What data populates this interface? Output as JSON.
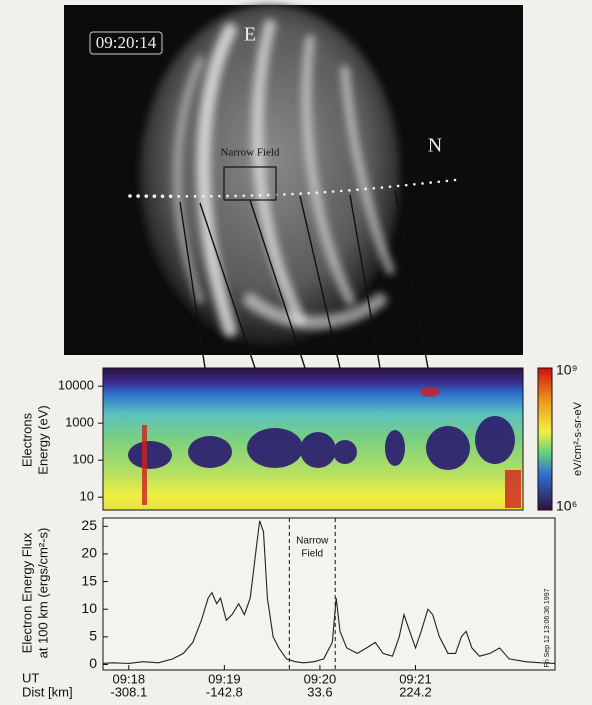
{
  "image": {
    "timestamp": "09:20:14",
    "labels": [
      "E",
      "N"
    ],
    "box_label": "Narrow Field"
  },
  "chart_data": [
    {
      "type": "spectrogram",
      "ylabel": [
        "Electrons",
        "Energy (eV)"
      ],
      "ylim": [
        4.5,
        31000
      ],
      "log_scale": true,
      "yticks": [
        10,
        100,
        1000,
        10000
      ],
      "colorbar": {
        "label": "eV/cm²-s-sr-eV",
        "ticks": [
          {
            "value": 1000000000,
            "label": "10⁹"
          },
          {
            "value": 1000000,
            "label": "10⁶"
          }
        ]
      }
    },
    {
      "type": "line",
      "ylabel": [
        "Electron Energy Flux",
        "at 100 km (ergs/cm²-s)"
      ],
      "color": "#222222",
      "x": [
        -0.27,
        -0.17,
        0,
        0.15,
        0.31,
        0.46,
        0.57,
        0.67,
        0.76,
        0.83,
        0.87,
        0.92,
        0.96,
        1.02,
        1.08,
        1.15,
        1.21,
        1.27,
        1.34,
        1.37,
        1.41,
        1.45,
        1.51,
        1.57,
        1.65,
        1.74,
        1.83,
        1.94,
        2.04,
        2.13,
        2.17,
        2.21,
        2.28,
        2.39,
        2.49,
        2.58,
        2.66,
        2.76,
        2.83,
        2.88,
        2.94,
        3.0,
        3.06,
        3.13,
        3.18,
        3.25,
        3.34,
        3.42,
        3.48,
        3.53,
        3.59,
        3.67,
        3.78,
        3.88,
        3.98,
        4.15,
        4.31,
        4.46
      ],
      "values": [
        0.2,
        0.3,
        0.2,
        0.5,
        0.3,
        1,
        2,
        4,
        8,
        12,
        13,
        11,
        12,
        8,
        9,
        11,
        9,
        12,
        22,
        26,
        24,
        12,
        5,
        3,
        1,
        0.5,
        0.3,
        0.5,
        1,
        4,
        12,
        6,
        3,
        2,
        3,
        4,
        2,
        1.5,
        5,
        9,
        6,
        3,
        6,
        10,
        9,
        5,
        2,
        2,
        5,
        6,
        3,
        1.5,
        2,
        3,
        1,
        0.5,
        0.3,
        0.2
      ],
      "xlim": [
        -0.27,
        4.46
      ],
      "ylim": [
        -1,
        26.5
      ],
      "yticks": [
        0,
        5,
        10,
        15,
        20,
        25
      ],
      "xticks": [
        {
          "value": 0,
          "label": "09:18"
        },
        {
          "value": 1,
          "label": "09:19"
        },
        {
          "value": 2,
          "label": "09:20"
        },
        {
          "value": 3,
          "label": "09:21"
        }
      ],
      "xtick_dist": [
        "-308.1",
        "-142.8",
        "33.6",
        "224.2"
      ],
      "x_row_labels": [
        "UT",
        "Dist [km]"
      ],
      "annotation": {
        "text": [
          "Narrow",
          "Field"
        ],
        "x": [
          1.68,
          2.16
        ]
      },
      "stamp": "Fri Sep 12 13:06:36 1997"
    }
  ]
}
